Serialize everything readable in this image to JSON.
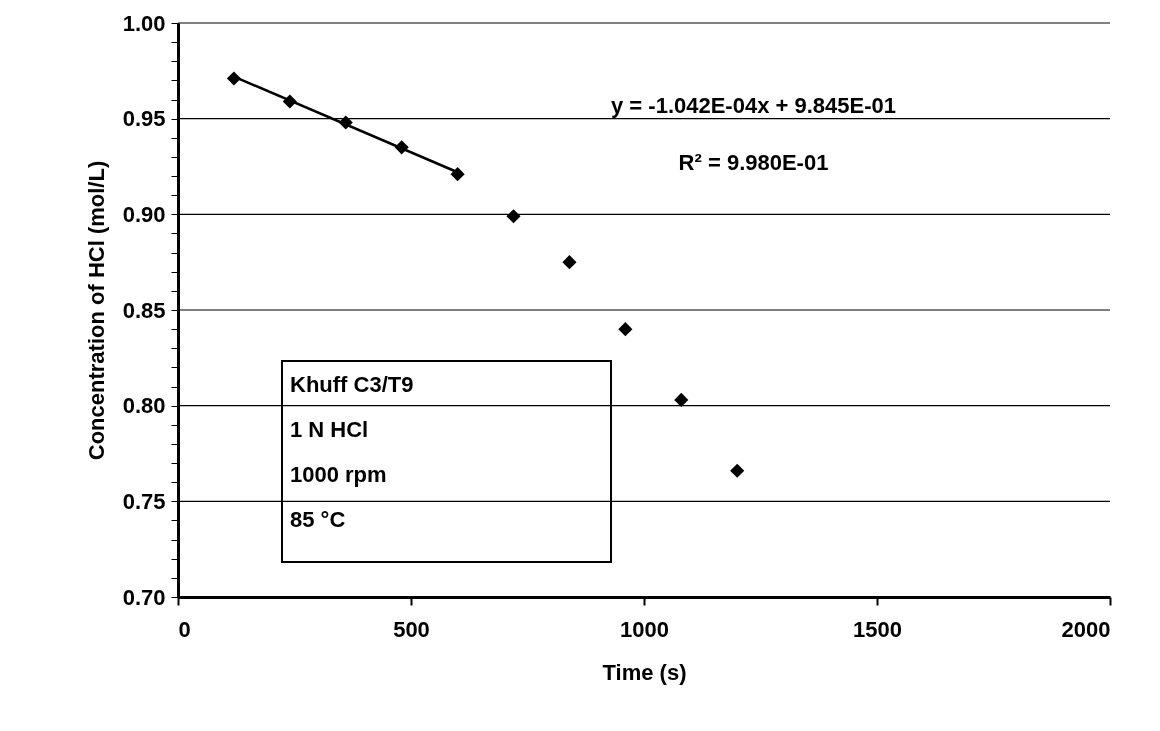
{
  "chart_data": {
    "type": "scatter",
    "xlabel": "Time (s)",
    "ylabel": "Concentration of HCl (mol/L)",
    "series": [
      {
        "color": "#000000",
        "marker": "diamond",
        "x": [
          120,
          240,
          360,
          480,
          600,
          720,
          840,
          960,
          1080,
          1200
        ],
        "values": [
          0.971,
          0.959,
          0.948,
          0.935,
          0.921,
          0.899,
          0.875,
          0.84,
          0.803,
          0.766
        ]
      },
      {
        "type": "line",
        "color": "#000000",
        "marker": "none",
        "line_style": "solid",
        "x": [
          120,
          600
        ],
        "values": [
          0.972,
          0.922
        ]
      }
    ],
    "xlim": [
      0,
      2000
    ],
    "xticks": [
      0,
      500,
      1000,
      1500,
      2000
    ],
    "ylim": [
      0.7,
      1.0
    ],
    "yticks": [
      {
        "value": 0.7,
        "label": "0.70"
      },
      {
        "value": 0.71,
        "label": null
      },
      {
        "value": 0.72,
        "label": null
      },
      {
        "value": 0.73,
        "label": null
      },
      {
        "value": 0.74,
        "label": null
      },
      {
        "value": 0.75,
        "label": "0.75"
      },
      {
        "value": 0.76,
        "label": null
      },
      {
        "value": 0.77,
        "label": null
      },
      {
        "value": 0.78,
        "label": null
      },
      {
        "value": 0.79,
        "label": null
      },
      {
        "value": 0.8,
        "label": "0.80"
      },
      {
        "value": 0.81,
        "label": null
      },
      {
        "value": 0.82,
        "label": null
      },
      {
        "value": 0.83,
        "label": null
      },
      {
        "value": 0.84,
        "label": null
      },
      {
        "value": 0.85,
        "label": "0.85"
      },
      {
        "value": 0.86,
        "label": null
      },
      {
        "value": 0.87,
        "label": null
      },
      {
        "value": 0.88,
        "label": null
      },
      {
        "value": 0.89,
        "label": null
      },
      {
        "value": 0.9,
        "label": "0.90"
      },
      {
        "value": 0.91,
        "label": null
      },
      {
        "value": 0.92,
        "label": null
      },
      {
        "value": 0.93,
        "label": null
      },
      {
        "value": 0.94,
        "label": null
      },
      {
        "value": 0.95,
        "label": "0.95"
      },
      {
        "value": 0.96,
        "label": null
      },
      {
        "value": 0.97,
        "label": null
      },
      {
        "value": 0.98,
        "label": null
      },
      {
        "value": 0.99,
        "label": null
      },
      {
        "value": 1.0,
        "label": "1.00"
      }
    ],
    "grid": "y",
    "annotations": [
      "y = -1.042E-04x + 9.845E-01",
      "R² = 9.980E-01",
      "Khuff C3/T9",
      "1 N HCl",
      "1000 rpm",
      "85 °C"
    ]
  }
}
